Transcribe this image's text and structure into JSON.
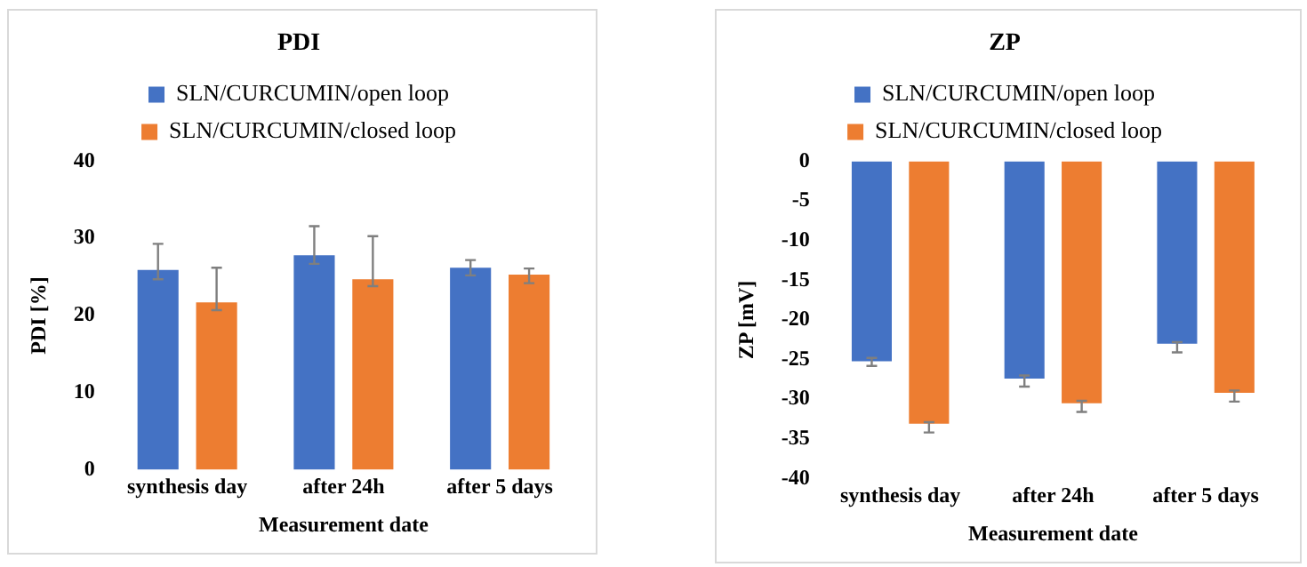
{
  "chart_data": [
    {
      "type": "bar",
      "title": "PDI",
      "xlabel": "Measurement date",
      "ylabel": "PDI [%]",
      "categories": [
        "synthesis day",
        "after 24h",
        "after 5 days"
      ],
      "series": [
        {
          "name": "SLN/CURCUMIN/open loop",
          "color": "#4472c4",
          "values": [
            25.9,
            27.8,
            26.2
          ],
          "errors": [
            [
              24.7,
              29.3
            ],
            [
              26.7,
              31.6
            ],
            [
              25.2,
              27.2
            ]
          ]
        },
        {
          "name": "SLN/CURCUMIN/closed loop",
          "color": "#ed7d31",
          "values": [
            21.7,
            24.7,
            25.3
          ],
          "errors": [
            [
              20.7,
              26.2
            ],
            [
              23.8,
              30.3
            ],
            [
              24.2,
              26.1
            ]
          ]
        }
      ],
      "ylim": [
        0,
        40
      ],
      "yticks": [
        0,
        10,
        20,
        30,
        40
      ],
      "grid": false,
      "legend": "top"
    },
    {
      "type": "bar",
      "title": "ZP",
      "xlabel": "Measurement date",
      "ylabel": "ZP [mV]",
      "categories": [
        "synthesis day",
        "after 24h",
        "after 5 days"
      ],
      "series": [
        {
          "name": "SLN/CURCUMIN/open loop",
          "color": "#4472c4",
          "values": [
            -25.2,
            -27.4,
            -23.0
          ],
          "errors": [
            [
              -25.8,
              -24.8
            ],
            [
              -28.4,
              -27.0
            ],
            [
              -24.1,
              -22.8
            ]
          ]
        },
        {
          "name": "SLN/CURCUMIN/closed loop",
          "color": "#ed7d31",
          "values": [
            -33.1,
            -30.5,
            -29.2
          ],
          "errors": [
            [
              -34.2,
              -32.9
            ],
            [
              -31.6,
              -30.2
            ],
            [
              -30.3,
              -28.9
            ]
          ]
        }
      ],
      "ylim": [
        -40,
        0
      ],
      "yticks": [
        -40,
        -35,
        -30,
        -25,
        -20,
        -15,
        -10,
        -5,
        0
      ],
      "grid": false,
      "legend": "top"
    }
  ]
}
